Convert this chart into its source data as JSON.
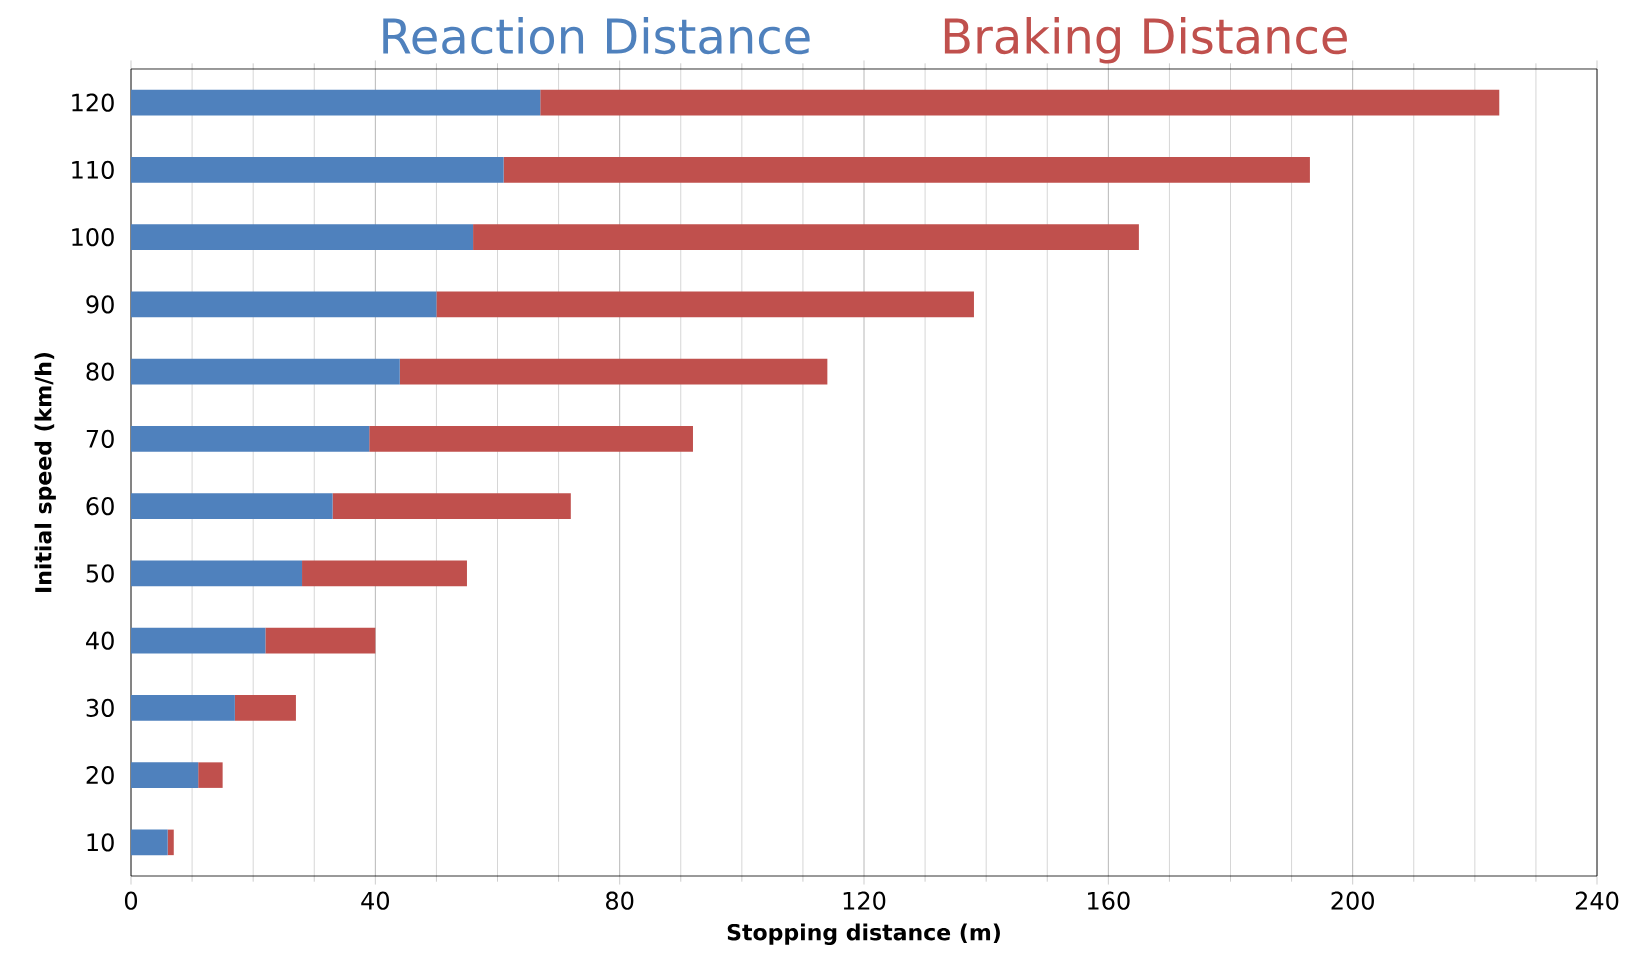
{
  "chart_data": {
    "type": "bar",
    "orientation": "horizontal",
    "stacked": true,
    "xlabel": "Stopping distance (m)",
    "ylabel": "Initial speed (km/h)",
    "categories": [
      "120",
      "110",
      "100",
      "90",
      "80",
      "70",
      "60",
      "50",
      "40",
      "30",
      "20",
      "10"
    ],
    "series": [
      {
        "name": "Reaction Distance",
        "color": "#4f81bd",
        "values": [
          67,
          61,
          56,
          50,
          44,
          39,
          33,
          28,
          22,
          17,
          11,
          6
        ]
      },
      {
        "name": "Braking Distance",
        "color": "#c0504d",
        "values": [
          157,
          132,
          109,
          88,
          70,
          53,
          39,
          27,
          18,
          10,
          4,
          1
        ]
      }
    ],
    "xlim": [
      0,
      240
    ],
    "xticks": [
      0,
      40,
      80,
      120,
      160,
      200,
      240
    ],
    "grid": "x",
    "legend": "top"
  }
}
